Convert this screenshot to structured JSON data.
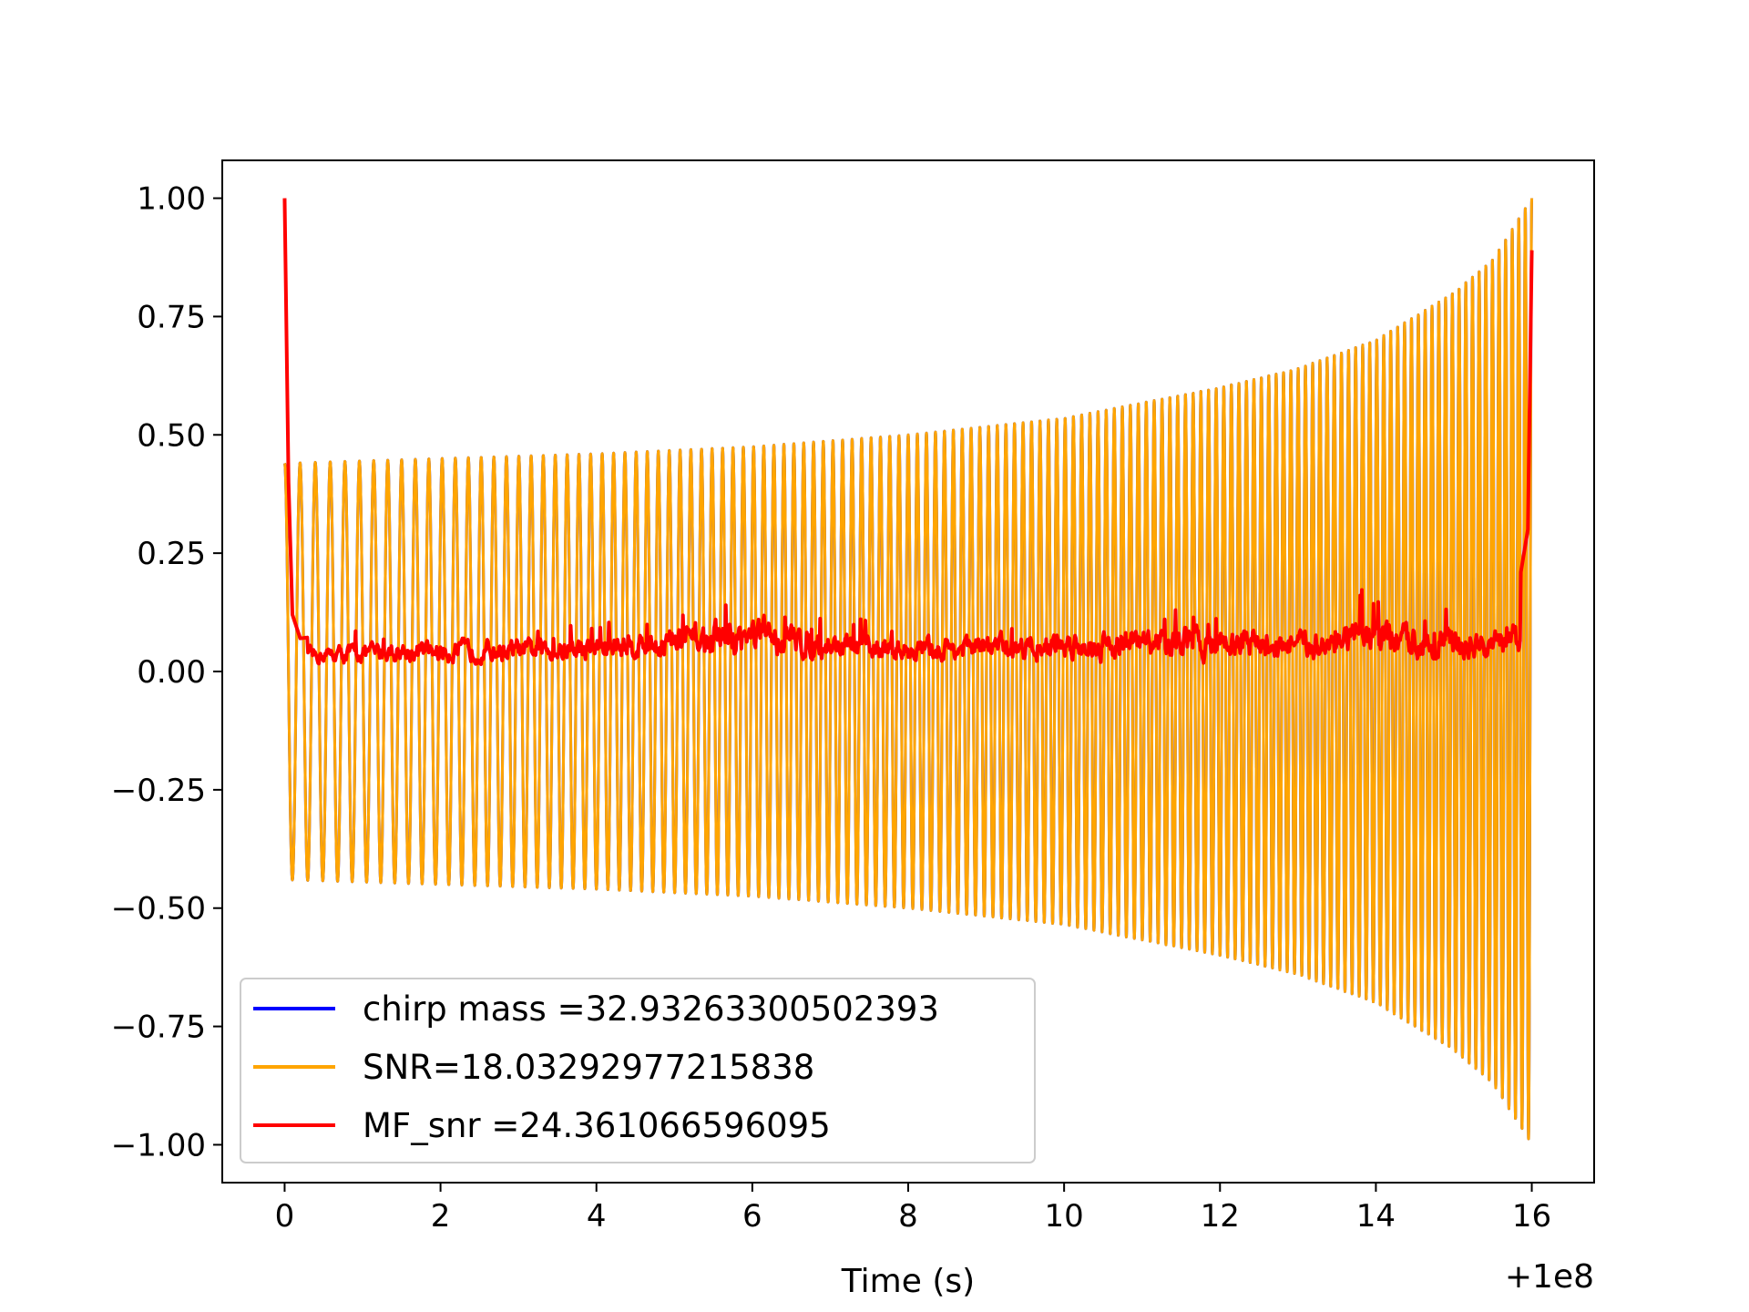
{
  "chart_data": {
    "type": "line",
    "title": "",
    "xlabel": "Time (s)",
    "ylabel": "",
    "x_offset_label": "+1e8",
    "xlim": [
      -0.8,
      16.8
    ],
    "ylim": [
      -1.08,
      1.08
    ],
    "x_ticks": [
      0,
      2,
      4,
      6,
      8,
      10,
      12,
      14,
      16
    ],
    "x_tick_labels": [
      "0",
      "2",
      "4",
      "6",
      "8",
      "10",
      "12",
      "14",
      "16"
    ],
    "y_ticks": [
      1.0,
      0.75,
      0.5,
      0.25,
      0.0,
      -0.25,
      -0.5,
      -0.75,
      -1.0
    ],
    "y_tick_labels": [
      "1.00",
      "0.75",
      "0.50",
      "0.25",
      "0.00",
      "−0.25",
      "−0.50",
      "−0.75",
      "−1.00"
    ],
    "grid": false,
    "legend_position": "bottom-left",
    "series": [
      {
        "name": "chirp mass =32.93263300502393",
        "color": "#0000ff",
        "kind": "chirp",
        "t_start": 0.0,
        "t_end": 16.0,
        "envelope": {
          "t": [
            0,
            2,
            4,
            6,
            8,
            10,
            12,
            13,
            14,
            15,
            15.5,
            16
          ],
          "amp": [
            0.44,
            0.45,
            0.46,
            0.475,
            0.5,
            0.535,
            0.6,
            0.64,
            0.7,
            0.8,
            0.87,
            1.0
          ]
        },
        "freq_start_hz": 5.0,
        "freq_end_hz": 12.0
      },
      {
        "name": "SNR=18.03292977215838",
        "color": "#ffa500",
        "kind": "chirp",
        "t_start": 0.0,
        "t_end": 16.0,
        "envelope": {
          "t": [
            0,
            2,
            4,
            6,
            8,
            10,
            12,
            13,
            14,
            15,
            15.5,
            16
          ],
          "amp": [
            0.44,
            0.45,
            0.46,
            0.475,
            0.5,
            0.535,
            0.6,
            0.64,
            0.7,
            0.8,
            0.87,
            1.0
          ]
        },
        "freq_start_hz": 5.0,
        "freq_end_hz": 12.0
      },
      {
        "name": "MF_snr =24.361066596095",
        "color": "#ff0000",
        "kind": "noise",
        "t": [
          0.0,
          0.05,
          0.1,
          0.2,
          1.2,
          3.6,
          6.15,
          7.0,
          8.0,
          10.4,
          12.1,
          13.0,
          14.0,
          15.5,
          15.8,
          15.95,
          16.0
        ],
        "y": [
          1.0,
          0.4,
          0.12,
          0.07,
          0.09,
          0.1,
          0.17,
          0.12,
          0.1,
          0.13,
          0.14,
          0.12,
          0.16,
          0.12,
          0.15,
          0.3,
          0.89
        ],
        "baseline": 0.05
      }
    ]
  }
}
